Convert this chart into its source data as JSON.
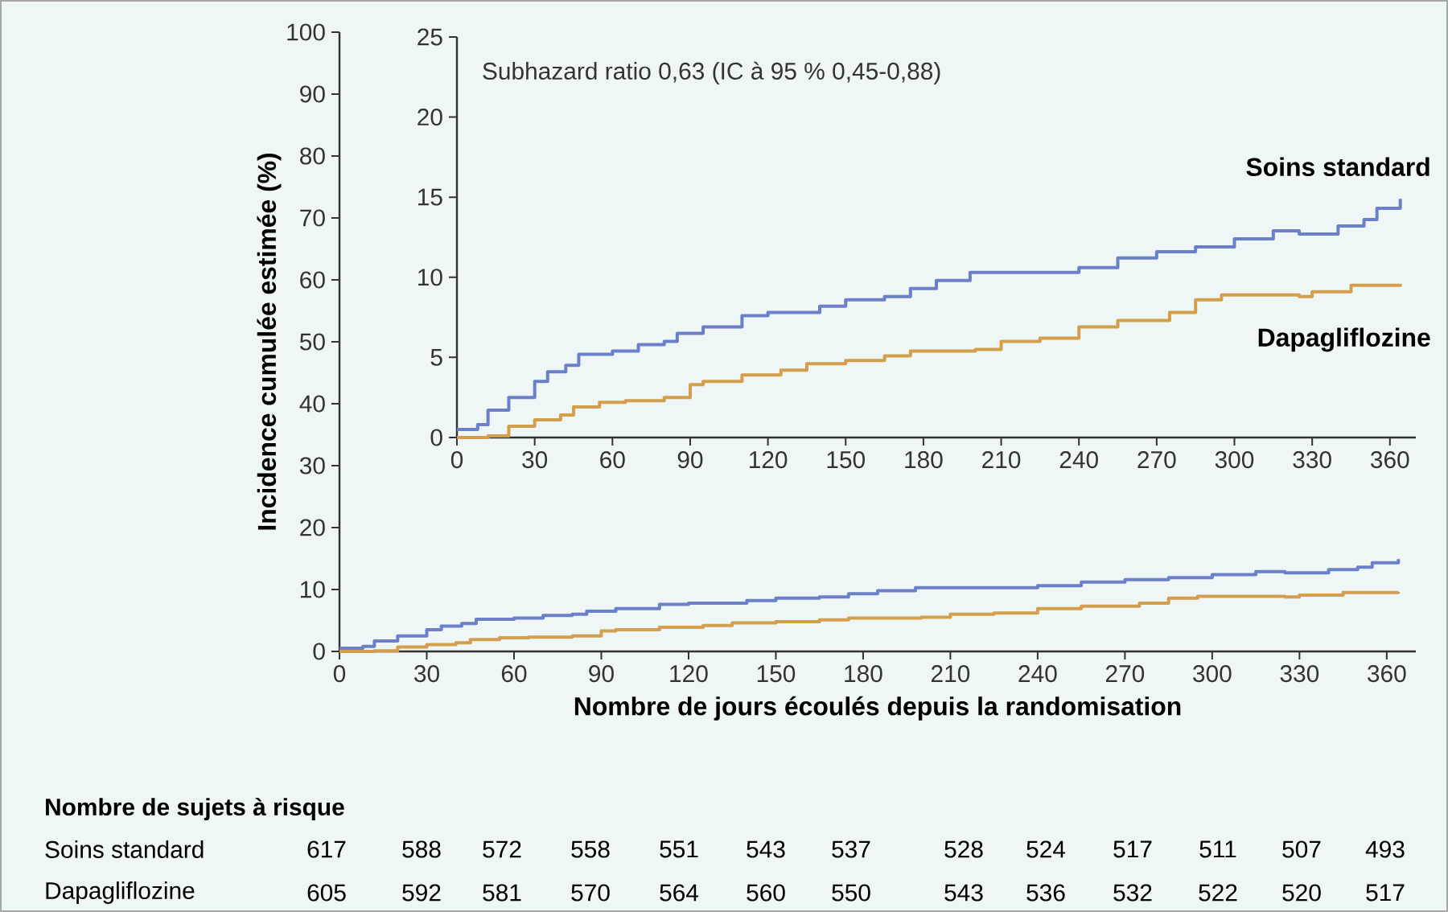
{
  "chart_data": [
    {
      "type": "step",
      "xlabel": "Nombre de jours écoulés depuis la randomisation",
      "ylabel": "Incidence cumulée estimée (%)",
      "xlim": [
        0,
        370
      ],
      "ylim": [
        0,
        100
      ],
      "xticks": [
        0,
        30,
        60,
        90,
        120,
        150,
        180,
        210,
        240,
        270,
        300,
        330,
        360
      ],
      "yticks": [
        0,
        10,
        20,
        30,
        40,
        50,
        60,
        70,
        80,
        90,
        100
      ],
      "legend": false,
      "series": [
        {
          "color": "#6b80c8",
          "x": [
            0,
            8,
            12,
            20,
            30,
            35,
            42,
            47,
            60,
            70,
            80,
            85,
            95,
            110,
            120,
            140,
            150,
            165,
            175,
            185,
            198,
            240,
            255,
            270,
            285,
            300,
            315,
            325,
            340,
            350,
            355,
            364
          ],
          "values": [
            0.5,
            0.8,
            1.7,
            2.5,
            3.5,
            4.1,
            4.5,
            5.2,
            5.4,
            5.8,
            6.0,
            6.5,
            6.9,
            7.6,
            7.8,
            8.2,
            8.6,
            8.8,
            9.3,
            9.8,
            10.3,
            10.6,
            11.2,
            11.6,
            11.9,
            12.4,
            12.9,
            12.7,
            13.2,
            13.6,
            14.3,
            14.9
          ]
        },
        {
          "color": "#d39f4c",
          "x": [
            0,
            12,
            20,
            30,
            40,
            45,
            55,
            65,
            80,
            90,
            95,
            110,
            125,
            135,
            150,
            165,
            175,
            200,
            210,
            225,
            240,
            255,
            275,
            285,
            295,
            325,
            330,
            345,
            364
          ],
          "values": [
            0,
            0.1,
            0.7,
            1.1,
            1.4,
            1.9,
            2.2,
            2.3,
            2.5,
            3.3,
            3.5,
            3.9,
            4.2,
            4.6,
            4.8,
            5.1,
            5.4,
            5.5,
            6.0,
            6.2,
            6.9,
            7.3,
            7.8,
            8.6,
            8.9,
            8.8,
            9.1,
            9.5,
            9.6
          ]
        }
      ]
    },
    {
      "type": "step",
      "xlim": [
        0,
        370
      ],
      "ylim": [
        0,
        25
      ],
      "xticks": [
        0,
        30,
        60,
        90,
        120,
        150,
        180,
        210,
        240,
        270,
        300,
        330,
        360
      ],
      "yticks": [
        0,
        5,
        10,
        15,
        20,
        25
      ],
      "legend": false,
      "annotations": [
        "Subhazard ratio 0,63 (IC à 95 % 0,45-0,88)"
      ],
      "series": [
        {
          "name": "Soins standard",
          "color": "#6b80c8",
          "x": [
            0,
            8,
            12,
            20,
            30,
            35,
            42,
            47,
            60,
            70,
            80,
            85,
            95,
            110,
            120,
            140,
            150,
            165,
            175,
            185,
            198,
            240,
            255,
            270,
            285,
            300,
            315,
            325,
            340,
            350,
            355,
            364
          ],
          "values": [
            0.5,
            0.8,
            1.7,
            2.5,
            3.5,
            4.1,
            4.5,
            5.2,
            5.4,
            5.8,
            6.0,
            6.5,
            6.9,
            7.6,
            7.8,
            8.2,
            8.6,
            8.8,
            9.3,
            9.8,
            10.3,
            10.6,
            11.2,
            11.6,
            11.9,
            12.4,
            12.9,
            12.7,
            13.2,
            13.6,
            14.3,
            14.9
          ]
        },
        {
          "name": "Dapagliflozine",
          "color": "#d39f4c",
          "x": [
            0,
            12,
            20,
            30,
            40,
            45,
            55,
            65,
            80,
            90,
            95,
            110,
            125,
            135,
            150,
            165,
            175,
            200,
            210,
            225,
            240,
            255,
            275,
            285,
            295,
            325,
            330,
            345,
            364
          ],
          "values": [
            0,
            0.1,
            0.7,
            1.1,
            1.4,
            1.9,
            2.2,
            2.3,
            2.5,
            3.3,
            3.5,
            3.9,
            4.2,
            4.6,
            4.8,
            5.1,
            5.4,
            5.5,
            6.0,
            6.2,
            6.9,
            7.3,
            7.8,
            8.6,
            8.9,
            8.8,
            9.1,
            9.5,
            9.6
          ]
        }
      ]
    },
    {
      "type": "other",
      "title": "Nombre de sujets à risque",
      "annotations": [
        "Soins standard",
        "617",
        "588",
        "572",
        "558",
        "551",
        "543",
        "537",
        "528",
        "524",
        "517",
        "511",
        "507",
        "493",
        "Dapagliflozine",
        "605",
        "592",
        "581",
        "570",
        "564",
        "560",
        "550",
        "543",
        "536",
        "532",
        "522",
        "520",
        "517"
      ]
    }
  ]
}
